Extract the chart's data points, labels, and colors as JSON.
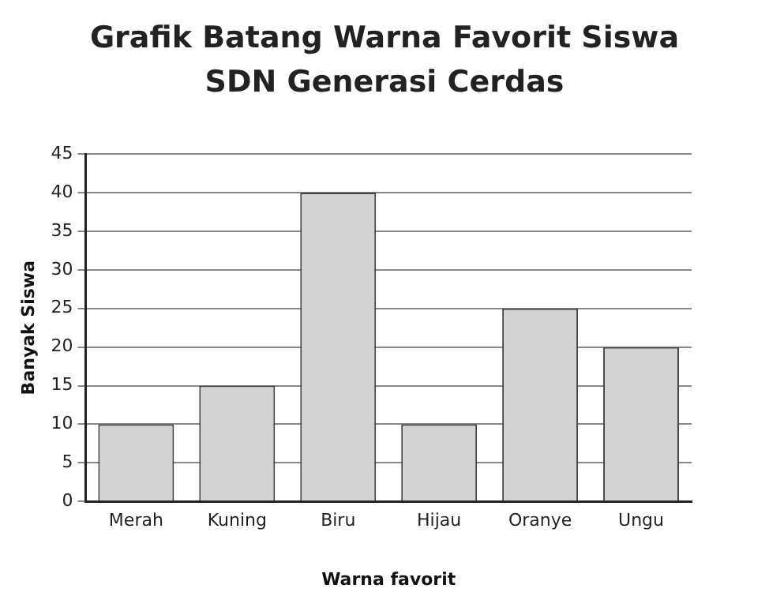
{
  "chart_data": {
    "type": "bar",
    "title": "Grafik Batang Warna Favorit Siswa",
    "subtitle": "SDN Generasi Cerdas",
    "xlabel": "Warna favorit",
    "ylabel": "Banyak Siswa",
    "categories": [
      "Merah",
      "Kuning",
      "Biru",
      "Hijau",
      "Oranye",
      "Ungu"
    ],
    "values": [
      10,
      15,
      40,
      10,
      25,
      20
    ],
    "color": "#d3d3d3",
    "ylim": [
      0,
      45
    ],
    "yticks": [
      0,
      5,
      10,
      15,
      20,
      25,
      30,
      35,
      40,
      45
    ],
    "grid": "y"
  }
}
